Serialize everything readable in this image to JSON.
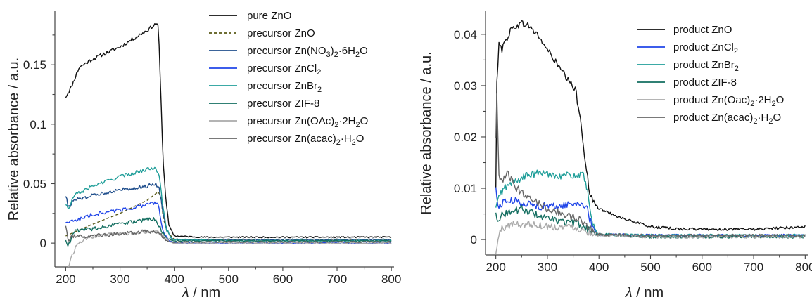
{
  "chart_data": [
    {
      "type": "line",
      "xlabel_italic": "λ",
      "xlabel_rest": " / nm",
      "ylabel": "Relative absorbance / a.u.",
      "xlim": [
        180,
        805
      ],
      "ylim": [
        -0.02,
        0.195
      ],
      "xticks": [
        200,
        300,
        400,
        500,
        600,
        700,
        800
      ],
      "yticks": [
        0,
        0.05,
        0.1,
        0.15
      ],
      "ytick_labels": [
        "0",
        "0.05",
        "0.1",
        "0.15"
      ],
      "legend_placement": "top-right",
      "series": [
        {
          "name": "pure ZnO",
          "legend": [
            [
              "pure ZnO",
              ""
            ]
          ],
          "color": "#111111",
          "dash": "",
          "x": [
            200,
            210,
            225,
            250,
            300,
            350,
            365,
            368,
            371,
            374,
            377,
            380,
            385,
            390,
            400,
            450,
            500,
            600,
            700,
            800
          ],
          "y": [
            0.123,
            0.131,
            0.148,
            0.155,
            0.165,
            0.179,
            0.184,
            0.185,
            0.18,
            0.14,
            0.1,
            0.065,
            0.035,
            0.015,
            0.006,
            0.005,
            0.005,
            0.005,
            0.005,
            0.005
          ]
        },
        {
          "name": "precursor ZnO",
          "legend": [
            [
              "precursor ZnO",
              ""
            ]
          ],
          "color": "#5a5a18",
          "dash": "4,3",
          "x": [
            200,
            250,
            300,
            350,
            370,
            375,
            380,
            390,
            400,
            500,
            600,
            700,
            800
          ],
          "y": [
            0.006,
            0.016,
            0.025,
            0.036,
            0.043,
            0.04,
            0.02,
            0.008,
            0.003,
            0.003,
            0.003,
            0.003,
            0.003
          ]
        },
        {
          "name": "precursor Zn(NO3)2·6H2O",
          "legend": [
            [
              "precursor Zn(NO",
              ""
            ],
            [
              "3",
              "sub"
            ],
            [
              ")",
              ""
            ],
            [
              "2",
              "sub"
            ],
            [
              "·6H",
              ""
            ],
            [
              "2",
              "sub"
            ],
            [
              "O",
              ""
            ]
          ],
          "color": "#1f4e8c",
          "dash": "",
          "x": [
            200,
            205,
            215,
            250,
            300,
            350,
            365,
            372,
            378,
            385,
            395,
            400,
            500,
            600,
            700,
            800
          ],
          "y": [
            0.04,
            0.03,
            0.036,
            0.04,
            0.045,
            0.048,
            0.05,
            0.046,
            0.03,
            0.012,
            0.004,
            0.003,
            0.003,
            0.003,
            0.003,
            0.003
          ]
        },
        {
          "name": "precursor ZnCl2",
          "legend": [
            [
              "precursor ZnCl",
              ""
            ],
            [
              "2",
              "sub"
            ]
          ],
          "color": "#2146e8",
          "dash": "",
          "x": [
            200,
            210,
            250,
            300,
            350,
            365,
            370,
            375,
            380,
            390,
            400,
            500,
            600,
            700,
            800
          ],
          "y": [
            0.018,
            0.018,
            0.024,
            0.028,
            0.032,
            0.034,
            0.033,
            0.02,
            0.01,
            0.002,
            0.0,
            0.0,
            0.0,
            0.0,
            0.0
          ]
        },
        {
          "name": "precursor ZnBr2",
          "legend": [
            [
              "precursor ZnBr",
              ""
            ],
            [
              "2",
              "sub"
            ]
          ],
          "color": "#1f9e99",
          "dash": "",
          "x": [
            200,
            205,
            215,
            250,
            300,
            350,
            365,
            372,
            378,
            385,
            395,
            400,
            500,
            600,
            700,
            800
          ],
          "y": [
            0.033,
            0.028,
            0.04,
            0.048,
            0.056,
            0.062,
            0.064,
            0.058,
            0.035,
            0.012,
            0.004,
            0.003,
            0.002,
            0.002,
            0.002,
            0.002
          ]
        },
        {
          "name": "precursor ZIF-8",
          "legend": [
            [
              "precursor ZIF-8",
              ""
            ]
          ],
          "color": "#136e60",
          "dash": "",
          "x": [
            200,
            205,
            215,
            250,
            300,
            350,
            365,
            375,
            385,
            400,
            500,
            600,
            700,
            800
          ],
          "y": [
            0.003,
            -0.002,
            0.01,
            0.012,
            0.016,
            0.02,
            0.02,
            0.012,
            0.004,
            0.002,
            0.002,
            0.002,
            0.002,
            0.002
          ]
        },
        {
          "name": "precursor Zn(OAc)2·2H2O",
          "legend": [
            [
              "precursor Zn(OAc)",
              ""
            ],
            [
              "2",
              "sub"
            ],
            [
              "·2H",
              ""
            ],
            [
              "2",
              "sub"
            ],
            [
              "O",
              ""
            ]
          ],
          "color": "#a9a9a9",
          "dash": "",
          "x": [
            200,
            205,
            212,
            222,
            240,
            270,
            300,
            350,
            370,
            380,
            390,
            400,
            500,
            600,
            700,
            800
          ],
          "y": [
            -0.03,
            -0.02,
            -0.01,
            0.0,
            0.004,
            0.007,
            0.008,
            0.009,
            0.009,
            0.005,
            0.001,
            0.0,
            0.0,
            0.0,
            0.0,
            0.0
          ]
        },
        {
          "name": "precursor Zn(acac)2·H2O",
          "legend": [
            [
              "precursor Zn(acac)",
              ""
            ],
            [
              "2",
              "sub"
            ],
            [
              "·H",
              ""
            ],
            [
              "2",
              "sub"
            ],
            [
              "O",
              ""
            ]
          ],
          "color": "#666666",
          "dash": "",
          "x": [
            200,
            205,
            210,
            250,
            300,
            350,
            370,
            380,
            390,
            400,
            500,
            600,
            700,
            800
          ],
          "y": [
            0.015,
            0.0,
            0.006,
            0.006,
            0.008,
            0.01,
            0.009,
            0.005,
            0.001,
            0.001,
            0.001,
            0.001,
            0.001,
            0.001
          ]
        }
      ]
    },
    {
      "type": "line",
      "xlabel_italic": "λ",
      "xlabel_rest": " / nm",
      "ylabel": "Relative absorbance / a.u.",
      "xlim": [
        180,
        805
      ],
      "ylim": [
        -0.003,
        0.0445
      ],
      "xticks": [
        200,
        300,
        400,
        500,
        600,
        700,
        800
      ],
      "yticks": [
        0,
        0.01,
        0.02,
        0.03,
        0.04
      ],
      "ytick_labels": [
        "0",
        "0.01",
        "0.02",
        "0.03",
        "0.04"
      ],
      "legend_placement": "top-right",
      "series": [
        {
          "name": "product ZnO",
          "legend": [
            [
              "product ZnO",
              ""
            ]
          ],
          "color": "#111111",
          "dash": "",
          "x": [
            200,
            202,
            206,
            212,
            220,
            230,
            245,
            260,
            280,
            300,
            320,
            340,
            355,
            365,
            375,
            382,
            392,
            400,
            450,
            500,
            550,
            600,
            700,
            800
          ],
          "y": [
            0.01,
            0.03,
            0.039,
            0.037,
            0.039,
            0.041,
            0.042,
            0.042,
            0.04,
            0.037,
            0.034,
            0.031,
            0.029,
            0.023,
            0.014,
            0.009,
            0.007,
            0.006,
            0.004,
            0.0025,
            0.0021,
            0.002,
            0.002,
            0.0025
          ]
        },
        {
          "name": "product ZnCl2",
          "legend": [
            [
              "product ZnCl",
              ""
            ],
            [
              "2",
              "sub"
            ]
          ],
          "color": "#2146e8",
          "dash": "",
          "x": [
            200,
            205,
            215,
            240,
            280,
            320,
            350,
            370,
            378,
            385,
            395,
            400,
            500,
            600,
            700,
            800
          ],
          "y": [
            0.01,
            0.006,
            0.0075,
            0.0075,
            0.0065,
            0.0065,
            0.007,
            0.007,
            0.0055,
            0.003,
            0.0012,
            0.001,
            0.0008,
            0.0008,
            0.0008,
            0.0008
          ]
        },
        {
          "name": "product ZnBr2",
          "legend": [
            [
              "product ZnBr",
              ""
            ],
            [
              "2",
              "sub"
            ]
          ],
          "color": "#1f9e99",
          "dash": "",
          "x": [
            200,
            205,
            215,
            240,
            260,
            290,
            320,
            350,
            370,
            378,
            385,
            395,
            400,
            500,
            600,
            700,
            800
          ],
          "y": [
            0.006,
            0.008,
            0.01,
            0.0115,
            0.0125,
            0.013,
            0.0125,
            0.0125,
            0.0125,
            0.009,
            0.004,
            0.0015,
            0.001,
            0.0008,
            0.0008,
            0.0008,
            0.0008
          ]
        },
        {
          "name": "product ZIF-8",
          "legend": [
            [
              "product ZIF-8",
              ""
            ]
          ],
          "color": "#136e60",
          "dash": "",
          "x": [
            200,
            205,
            215,
            250,
            300,
            330,
            360,
            380,
            395,
            400,
            500,
            600,
            700,
            800
          ],
          "y": [
            0.005,
            0.004,
            0.005,
            0.006,
            0.004,
            0.0035,
            0.003,
            0.002,
            0.001,
            0.001,
            0.0005,
            0.0005,
            0.0005,
            0.0005
          ]
        },
        {
          "name": "product Zn(Oac)2·2H2O",
          "legend": [
            [
              "product Zn(Oac)",
              ""
            ],
            [
              "2",
              "sub"
            ],
            [
              "·2H",
              ""
            ],
            [
              "2",
              "sub"
            ],
            [
              "O",
              ""
            ]
          ],
          "color": "#a9a9a9",
          "dash": "",
          "x": [
            200,
            204,
            210,
            230,
            270,
            310,
            350,
            380,
            400,
            500,
            600,
            700,
            800
          ],
          "y": [
            -0.003,
            0.0,
            0.002,
            0.003,
            0.003,
            0.0025,
            0.0025,
            0.0015,
            0.0008,
            0.0005,
            0.0005,
            0.0005,
            0.0005
          ]
        },
        {
          "name": "product Zn(acac)2·H2O",
          "legend": [
            [
              "product Zn(acac)",
              ""
            ],
            [
              "2",
              "sub"
            ],
            [
              "·H",
              ""
            ],
            [
              "2",
              "sub"
            ],
            [
              "O",
              ""
            ]
          ],
          "color": "#666666",
          "dash": "",
          "x": [
            200,
            202,
            206,
            212,
            222,
            240,
            270,
            300,
            330,
            360,
            380,
            395,
            400,
            500,
            600,
            700,
            800
          ],
          "y": [
            0.0195,
            0.028,
            0.012,
            0.011,
            0.013,
            0.01,
            0.008,
            0.006,
            0.005,
            0.004,
            0.0025,
            0.0012,
            0.001,
            0.0008,
            0.0008,
            0.0008,
            0.0008
          ]
        }
      ]
    }
  ]
}
